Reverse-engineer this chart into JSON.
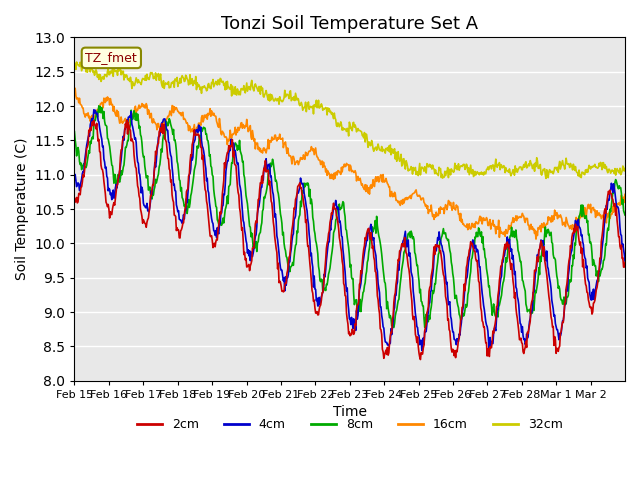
{
  "title": "Tonzi Soil Temperature Set A",
  "xlabel": "Time",
  "ylabel": "Soil Temperature (C)",
  "ylim": [
    8.0,
    13.0
  ],
  "yticks": [
    8.0,
    8.5,
    9.0,
    9.5,
    10.0,
    10.5,
    11.0,
    11.5,
    12.0,
    12.5,
    13.0
  ],
  "xtick_labels": [
    "Feb 15",
    "Feb 16",
    "Feb 17",
    "Feb 18",
    "Feb 19",
    "Feb 20",
    "Feb 21",
    "Feb 22",
    "Feb 23",
    "Feb 24",
    "Feb 25",
    "Feb 26",
    "Feb 27",
    "Feb 28",
    "Mar 1",
    "Mar 2"
  ],
  "legend_label": "TZ_fmet",
  "series_labels": [
    "2cm",
    "4cm",
    "8cm",
    "16cm",
    "32cm"
  ],
  "series_colors": [
    "#cc0000",
    "#0000cc",
    "#00aa00",
    "#ff8800",
    "#cccc00"
  ],
  "background_color": "#e8e8e8",
  "grid_color": "#ffffff",
  "figsize": [
    6.4,
    4.8
  ],
  "dpi": 100
}
